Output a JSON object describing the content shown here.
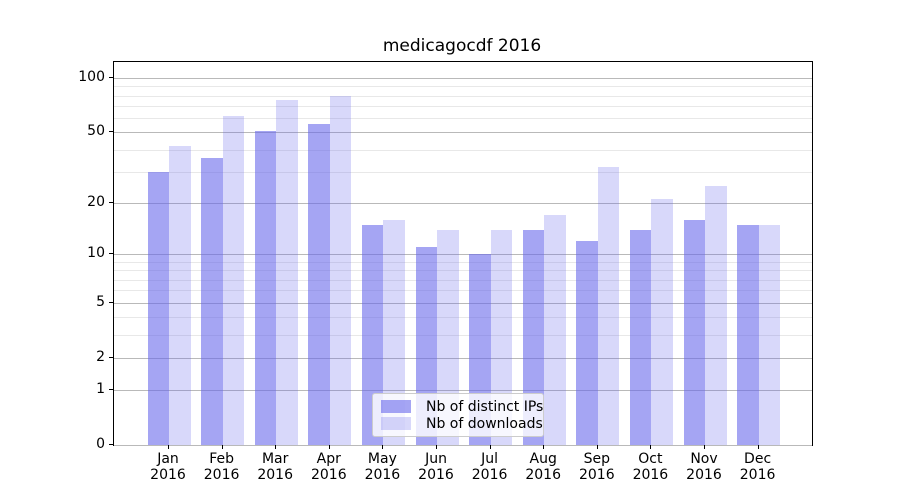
{
  "title": "medicagocdf 2016",
  "chart_data": {
    "type": "bar",
    "title": "medicagocdf 2016",
    "x_year": "2016",
    "months": [
      "Jan",
      "Feb",
      "Mar",
      "Apr",
      "May",
      "Jun",
      "Jul",
      "Aug",
      "Sep",
      "Oct",
      "Nov",
      "Dec"
    ],
    "categories": [
      "Jan 2016",
      "Feb 2016",
      "Mar 2016",
      "Apr 2016",
      "May 2016",
      "Jun 2016",
      "Jul 2016",
      "Aug 2016",
      "Sep 2016",
      "Oct 2016",
      "Nov 2016",
      "Dec 2016"
    ],
    "series": [
      {
        "name": "Nb of distinct IPs",
        "color": "rgba(100,100,235,0.58)",
        "values": [
          30,
          36,
          51,
          56,
          15,
          11,
          10,
          14,
          12,
          14,
          16,
          15
        ]
      },
      {
        "name": "Nb of downloads",
        "color": "rgba(100,100,235,0.25)",
        "values": [
          42,
          62,
          76,
          80,
          16,
          14,
          14,
          17,
          32,
          21,
          25,
          15
        ]
      }
    ],
    "yscale": "log1p",
    "ylim": [
      0,
      122.5
    ],
    "y_major_ticks": [
      0,
      1,
      2,
      5,
      10,
      20,
      50,
      100
    ],
    "y_minor_ticks": [
      3,
      4,
      6,
      7,
      8,
      9,
      30,
      40,
      60,
      70,
      80,
      90
    ],
    "grid": "horizontal, major and minor, behind translucent bars",
    "legend_position": "lower center"
  },
  "colors": {
    "bar_base": "#6464eb",
    "major_grid": "#b9b9b9",
    "minor_grid": "#e8e8e8",
    "spine": "#000000",
    "text": "#000000",
    "legend_border": "#cccccc",
    "legend_bg": "rgba(255,255,255,0.8)"
  }
}
